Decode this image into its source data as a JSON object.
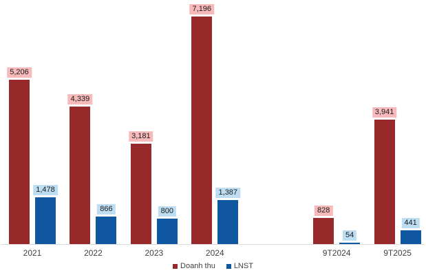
{
  "chart_data": {
    "type": "bar",
    "title": "",
    "xlabel": "",
    "ylabel": "",
    "categories": [
      "2021",
      "2022",
      "2023",
      "2024",
      "",
      "9T2024",
      "9T2025"
    ],
    "series": [
      {
        "name": "Doanh thu",
        "values": [
          5206,
          4339,
          3181,
          7196,
          null,
          828,
          3941
        ],
        "bar_color": "#97292b",
        "label_bg": "#f7b9b9"
      },
      {
        "name": "LNST",
        "values": [
          1478,
          866,
          800,
          1387,
          null,
          54,
          441
        ],
        "bar_color": "#0f57a0",
        "label_bg": "#bdddf2"
      }
    ],
    "ylim": [
      0,
      7700
    ],
    "grid": false,
    "y_axis_visible": false,
    "data_labels": true,
    "legend_position": "bottom-center",
    "axis_line_color": "#d9d9d9",
    "category_label_color": "#404040"
  }
}
